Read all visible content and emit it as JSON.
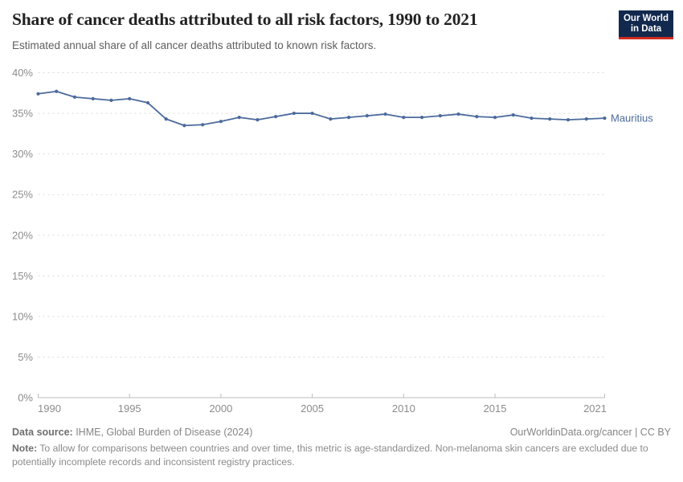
{
  "header": {
    "title": "Share of cancer deaths attributed to all risk factors, 1990 to 2021",
    "subtitle": "Estimated annual share of all cancer deaths attributed to known risk factors.",
    "logo": {
      "line1": "Our World",
      "line2": "in Data"
    }
  },
  "chart_data": {
    "type": "line",
    "title": "Share of cancer deaths attributed to all risk factors, 1990 to 2021",
    "subtitle": "Estimated annual share of all cancer deaths attributed to known risk factors.",
    "x": [
      1990,
      1991,
      1992,
      1993,
      1994,
      1995,
      1996,
      1997,
      1998,
      1999,
      2000,
      2001,
      2002,
      2003,
      2004,
      2005,
      2006,
      2007,
      2008,
      2009,
      2010,
      2011,
      2012,
      2013,
      2014,
      2015,
      2016,
      2017,
      2018,
      2019,
      2020,
      2021
    ],
    "series": [
      {
        "name": "Mauritius",
        "color": "#4c6a9c",
        "values": [
          37.4,
          37.7,
          37.0,
          36.8,
          36.6,
          36.8,
          36.3,
          34.3,
          33.5,
          33.6,
          34.0,
          34.5,
          34.2,
          34.6,
          35.0,
          35.0,
          34.3,
          34.5,
          34.7,
          34.9,
          34.5,
          34.5,
          34.7,
          34.9,
          34.6,
          34.5,
          34.8,
          34.4,
          34.3,
          34.2,
          34.3,
          34.4
        ]
      }
    ],
    "ylim": [
      0,
      40
    ],
    "yticks": [
      0,
      5,
      10,
      15,
      20,
      25,
      30,
      35,
      40
    ],
    "ytick_suffix": "%",
    "xticks": [
      1990,
      1995,
      2000,
      2005,
      2010,
      2015,
      2021
    ],
    "xlabel": "",
    "ylabel": "",
    "grid": "horizontal-dashed",
    "legend_position": "end-of-line-label"
  },
  "colors": {
    "line": "#4c6a9c",
    "grid": "#dadada",
    "axis": "#bdbdbd",
    "tick_label": "#8c8c8c",
    "logo_bg": "#12294d",
    "logo_accent": "#d22a20"
  },
  "footer": {
    "datasource_label": "Data source:",
    "datasource_value": " IHME, Global Burden of Disease (2024)",
    "rights": "OurWorldinData.org/cancer | CC BY",
    "note_label": "Note:",
    "note_value": " To allow for comparisons between countries and over time, this metric is age-standardized. Non-melanoma skin cancers are excluded due to potentially incomplete records and inconsistent registry practices."
  }
}
